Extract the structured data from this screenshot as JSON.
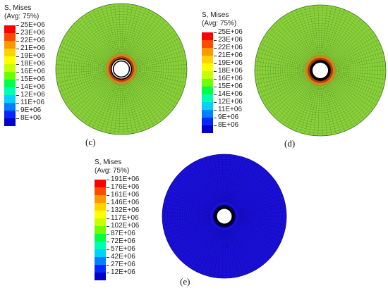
{
  "panels": [
    {
      "id": "c",
      "caption": "(c)",
      "legend_title_line1": "S, Mises",
      "legend_title_line2": "(Avg: 75%)",
      "legend_labels": [
        "25E+06",
        "23E+06",
        "22E+06",
        "21E+06",
        "19E+06",
        "18E+06",
        "16E+06",
        "15E+06",
        "14E+06",
        "12E+06",
        "11E+06",
        "9E+06",
        "8E+06"
      ],
      "hole_ring": "white"
    },
    {
      "id": "d",
      "caption": "(d)",
      "legend_title_line1": "S, Mises",
      "legend_title_line2": "(Avg: 75%)",
      "legend_labels": [
        "25E+06",
        "23E+06",
        "22E+06",
        "21E+06",
        "19E+06",
        "18E+06",
        "16E+06",
        "15E+06",
        "14E+06",
        "12E+06",
        "11E+06",
        "9E+06",
        "8E+06"
      ],
      "hole_ring": "black"
    },
    {
      "id": "e",
      "caption": "(e)",
      "legend_title_line1": "S, Mises",
      "legend_title_line2": "(Avg: 75%)",
      "legend_labels": [
        "191E+06",
        "176E+06",
        "161E+06",
        "146E+06",
        "132E+06",
        "117E+06",
        "102E+06",
        "87E+06",
        "72E+06",
        "57E+06",
        "42E+06",
        "27E+06",
        "12E+06"
      ],
      "hole_ring": "black"
    }
  ],
  "legend_colors": [
    "#ff0000",
    "#ff4a00",
    "#ff9800",
    "#ffd200",
    "#ffff00",
    "#c8ff00",
    "#6eff00",
    "#00ff46",
    "#00ffb4",
    "#00d2ff",
    "#0080ff",
    "#0028ff",
    "#0000c8"
  ],
  "disc_colors": {
    "c": "#8ad23a",
    "d": "#8ad23a",
    "e": "#1a10d8"
  }
}
